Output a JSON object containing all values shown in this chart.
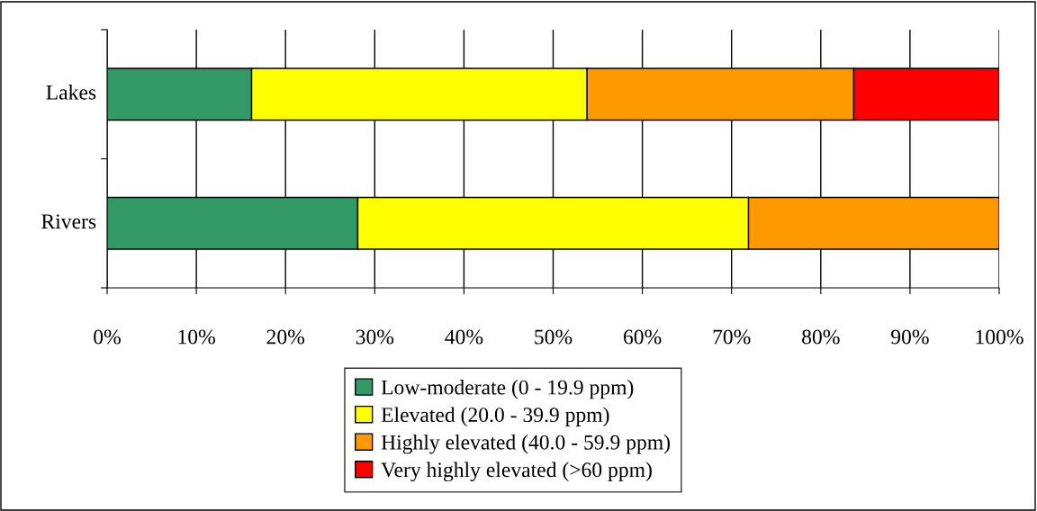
{
  "chart_data": {
    "type": "bar",
    "orientation": "horizontal",
    "stacked": true,
    "categories": [
      "Lakes",
      "Rivers"
    ],
    "series": [
      {
        "name": "Low-moderate (0 - 19.9 ppm)",
        "color": "#339966",
        "values": [
          16.2,
          28.1
        ]
      },
      {
        "name": "Elevated (20.0 - 39.9 ppm)",
        "color": "#ffff00",
        "values": [
          37.6,
          43.8
        ]
      },
      {
        "name": "Highly elevated (40.0 - 59.9 ppm)",
        "color": "#ff9900",
        "values": [
          29.9,
          28.1
        ]
      },
      {
        "name": "Very highly elevated (>60 ppm)",
        "color": "#ff0000",
        "values": [
          16.3,
          null
        ]
      }
    ],
    "xlim": [
      0,
      100
    ],
    "xticks": [
      {
        "value": 0,
        "label": "0%"
      },
      {
        "value": 10,
        "label": "10%"
      },
      {
        "value": 20,
        "label": "20%"
      },
      {
        "value": 30,
        "label": "30%"
      },
      {
        "value": 40,
        "label": "40%"
      },
      {
        "value": 50,
        "label": "50%"
      },
      {
        "value": 60,
        "label": "60%"
      },
      {
        "value": 70,
        "label": "70%"
      },
      {
        "value": 80,
        "label": "80%"
      },
      {
        "value": 90,
        "label": "90%"
      },
      {
        "value": 100,
        "label": "100%"
      }
    ],
    "grid": "x",
    "legend": "bottom"
  }
}
